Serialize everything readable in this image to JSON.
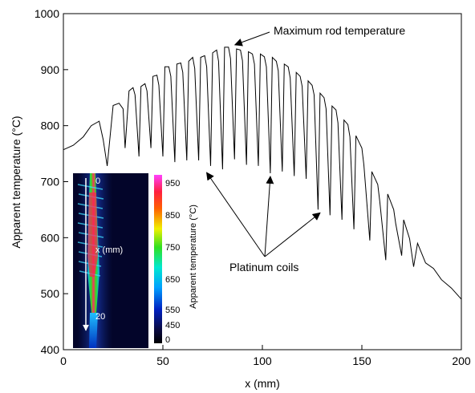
{
  "chart_data": {
    "type": "line",
    "xlabel": "x (mm)",
    "ylabel": "Apparent temperature (°C)",
    "xlim": [
      0,
      200
    ],
    "ylim": [
      400,
      1000
    ],
    "xticks": [
      0,
      50,
      100,
      150,
      200
    ],
    "yticks": [
      400,
      500,
      600,
      700,
      800,
      900,
      1000
    ],
    "grid": false,
    "series": [
      {
        "x": [
          0,
          5,
          10,
          14,
          18,
          20,
          22,
          25,
          28,
          30,
          31,
          33,
          35,
          36,
          38,
          39,
          41,
          42,
          44,
          45,
          47,
          48,
          50,
          51,
          53,
          54,
          56,
          57,
          59,
          60,
          62,
          63,
          65,
          66,
          68,
          69,
          71,
          72,
          74,
          75,
          77,
          78,
          80,
          81,
          83,
          84,
          86,
          87,
          89,
          90,
          92,
          93,
          95,
          96,
          98,
          99,
          101,
          102,
          104,
          105,
          107,
          108,
          110,
          111,
          113,
          114,
          116,
          117,
          119,
          120,
          122,
          123,
          125,
          126,
          128,
          129,
          131,
          132,
          134,
          135,
          137,
          138,
          140,
          141,
          143,
          144,
          146,
          147,
          150,
          151,
          154,
          155,
          158,
          159,
          162,
          163,
          166,
          167,
          170,
          171,
          174,
          176,
          178,
          182,
          186,
          190,
          195,
          200
        ],
        "values": [
          757,
          765,
          780,
          800,
          808,
          775,
          728,
          836,
          840,
          830,
          760,
          862,
          868,
          855,
          745,
          870,
          875,
          862,
          760,
          888,
          890,
          872,
          745,
          905,
          905,
          888,
          735,
          910,
          912,
          895,
          738,
          915,
          922,
          902,
          738,
          922,
          925,
          905,
          728,
          930,
          935,
          915,
          722,
          940,
          940,
          920,
          740,
          937,
          935,
          916,
          730,
          932,
          928,
          910,
          728,
          928,
          923,
          905,
          715,
          922,
          915,
          898,
          718,
          910,
          905,
          885,
          710,
          895,
          888,
          870,
          705,
          880,
          872,
          855,
          650,
          858,
          850,
          830,
          640,
          835,
          828,
          805,
          632,
          810,
          802,
          780,
          615,
          782,
          760,
          730,
          595,
          718,
          695,
          665,
          560,
          678,
          650,
          625,
          568,
          632,
          598,
          548,
          590,
          555,
          545,
          525,
          510,
          490
        ]
      }
    ],
    "annotations": [
      {
        "text": "Maximum rod temperature",
        "x": 85,
        "y": 940
      },
      {
        "text": "Platinum coils",
        "points": [
          [
            72,
            722
          ],
          [
            104,
            715
          ],
          [
            129,
            650
          ]
        ]
      }
    ],
    "inset": {
      "type": "heatmap",
      "colorbar_label": "Apparent temperature (°C)",
      "colorbar_ticks": [
        "950",
        "850",
        "750",
        "650",
        "550",
        "450",
        "0"
      ],
      "axis_label": "x (mm)",
      "axis_ticks": [
        "0",
        "20"
      ]
    }
  }
}
